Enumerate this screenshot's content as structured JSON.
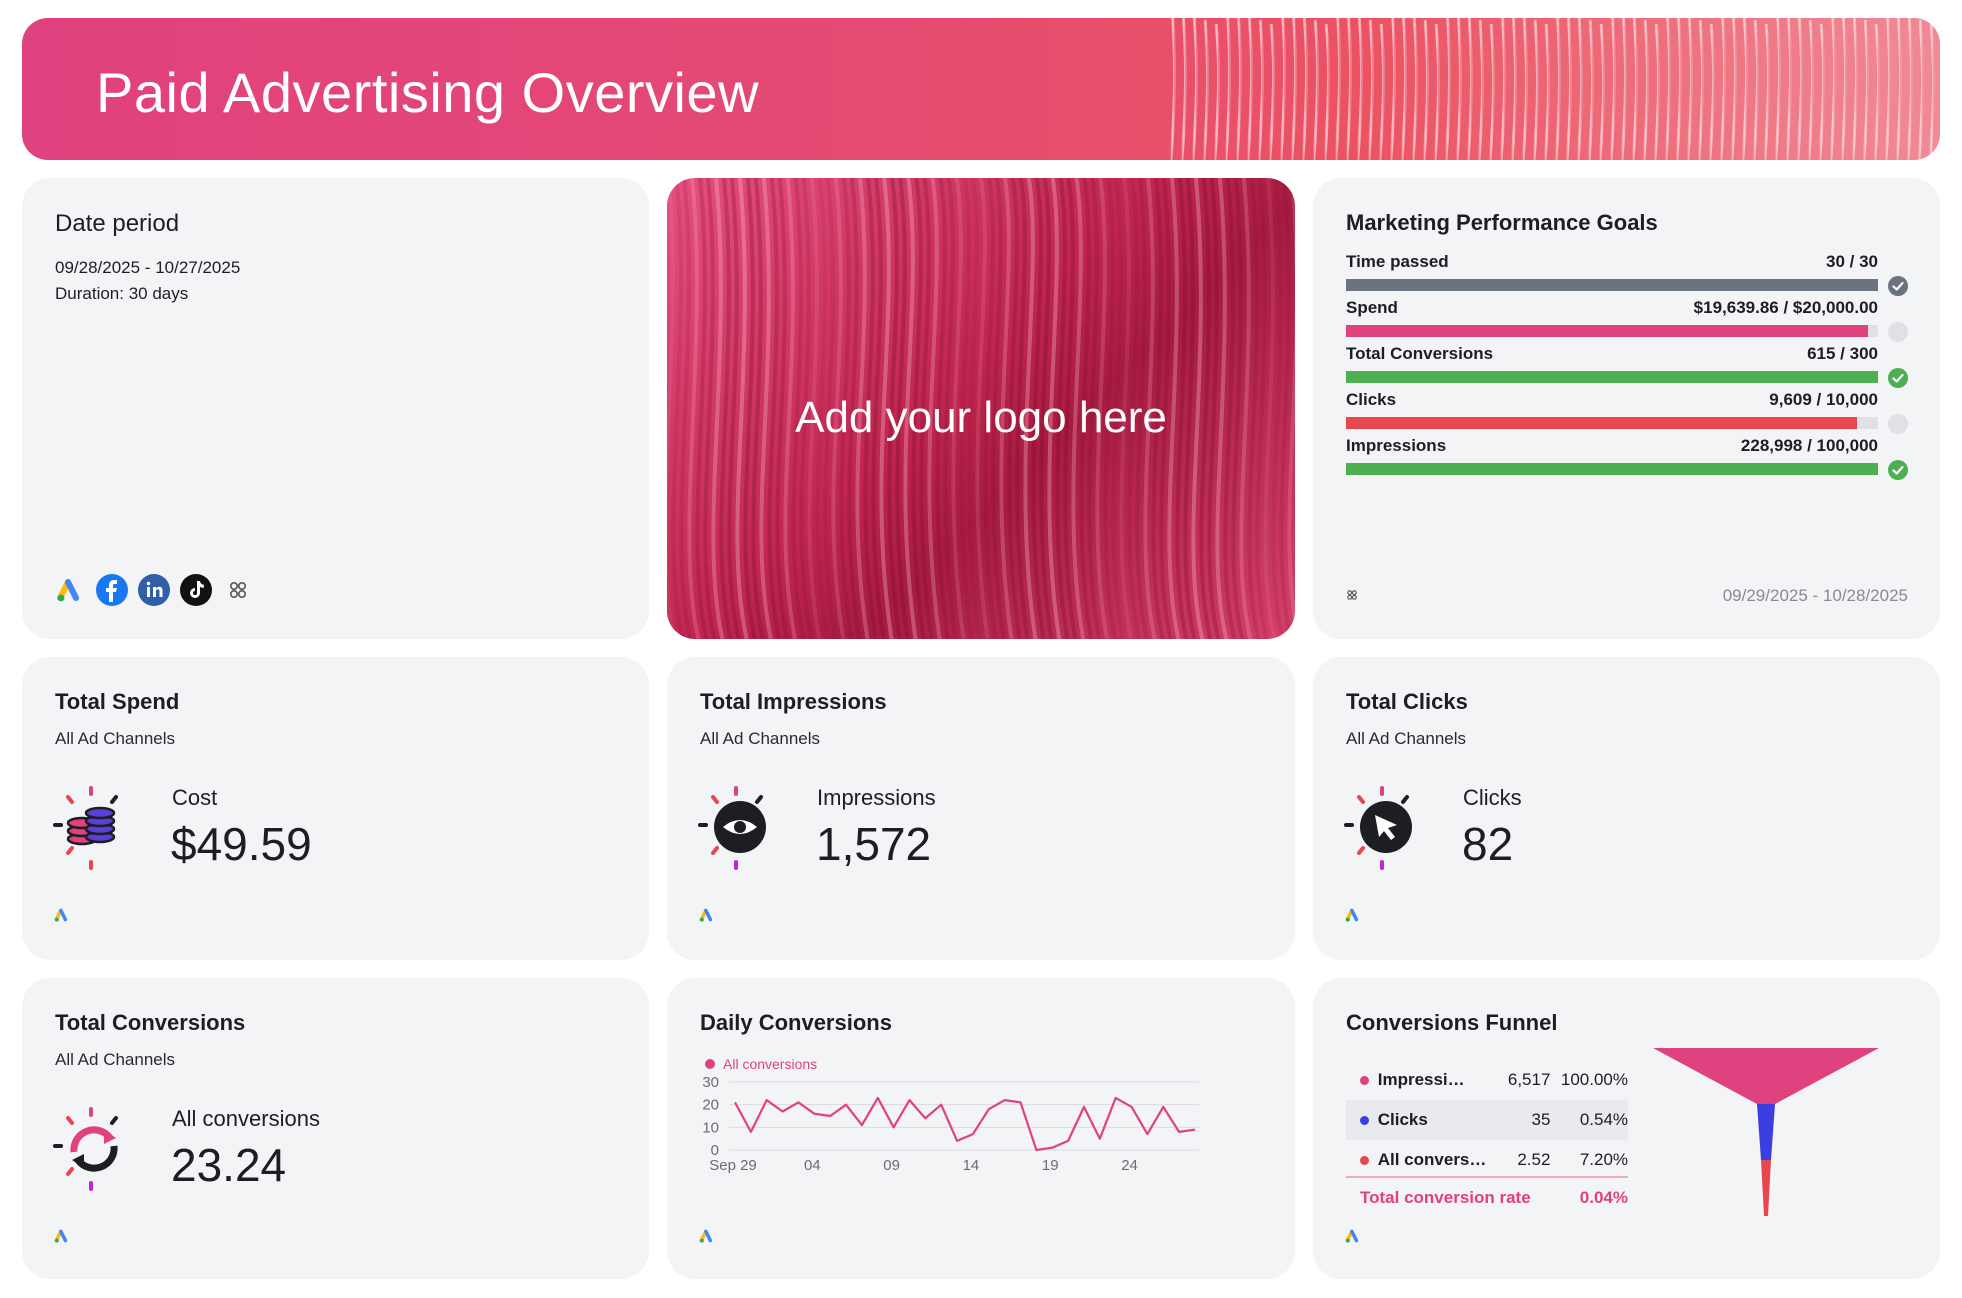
{
  "header": {
    "title": "Paid Advertising Overview"
  },
  "date_card": {
    "title": "Date period",
    "range": "09/28/2025 - 10/27/2025",
    "duration": "Duration:  30 days",
    "sources": [
      "google-ads-icon",
      "facebook-ads-icon",
      "linkedin-ads-icon",
      "tiktok-ads-icon",
      "integrations-icon"
    ]
  },
  "logo_card": {
    "text": "Add your logo here"
  },
  "goals": {
    "title": "Marketing Performance Goals",
    "items": [
      {
        "label": "Time passed",
        "value": "30 / 30",
        "progress": 1.0,
        "color": "#6b7280",
        "status": "done"
      },
      {
        "label": "Spend",
        "value": "$19,639.86 / $20,000.00",
        "progress": 0.982,
        "color": "#e0417f",
        "status": "pending"
      },
      {
        "label": "Total Conversions",
        "value": "615 / 300",
        "progress": 1.0,
        "color": "#4caf50",
        "status": "ok"
      },
      {
        "label": "Clicks",
        "value": "9,609 / 10,000",
        "progress": 0.961,
        "color": "#e8474f",
        "status": "pending"
      },
      {
        "label": "Impressions",
        "value": "228,998 / 100,000",
        "progress": 1.0,
        "color": "#4caf50",
        "status": "ok"
      }
    ],
    "footer_date": "09/29/2025 - 10/28/2025"
  },
  "spend": {
    "title": "Total Spend",
    "subtitle": "All Ad Channels",
    "label": "Cost",
    "value": "$49.59"
  },
  "impressions": {
    "title": "Total Impressions",
    "subtitle": "All Ad Channels",
    "label": "Impressions",
    "value": "1,572"
  },
  "clicks": {
    "title": "Total Clicks",
    "subtitle": "All Ad Channels",
    "label": "Clicks",
    "value": "82"
  },
  "conversions": {
    "title": "Total Conversions",
    "subtitle": "All Ad Channels",
    "label": "All conversions",
    "value": "23.24"
  },
  "daily": {
    "title": "Daily Conversions",
    "legend": "All conversions"
  },
  "funnel": {
    "title": "Conversions Funnel",
    "rows": [
      {
        "name": "Impressi…",
        "value": "6,517",
        "pct": "100.00%",
        "color": "#e0417f"
      },
      {
        "name": "Clicks",
        "value": "35",
        "pct": "0.54%",
        "color": "#3b3fe0"
      },
      {
        "name": "All conversio…",
        "value": "2.52",
        "pct": "7.20%",
        "color": "#e8474f"
      }
    ],
    "rate_label": "Total conversion rate",
    "rate_value": "0.04%"
  },
  "chart_data": {
    "type": "line",
    "title": "Daily Conversions",
    "series": [
      {
        "name": "All conversions",
        "color": "#e0417f",
        "values": [
          21,
          8,
          22,
          17,
          21,
          16,
          15,
          20,
          11,
          23,
          10,
          22,
          14,
          20,
          4,
          7,
          18,
          22,
          21,
          0,
          1,
          4,
          19,
          5,
          23,
          19,
          7,
          19,
          8,
          9
        ]
      }
    ],
    "x_tick_labels": [
      "Sep 29",
      "04",
      "09",
      "14",
      "19",
      "24"
    ],
    "x_tick_index": [
      0,
      5,
      10,
      15,
      20,
      25
    ],
    "yticks": [
      0,
      10,
      20,
      30
    ],
    "ylim": [
      0,
      30
    ],
    "grid": true
  }
}
